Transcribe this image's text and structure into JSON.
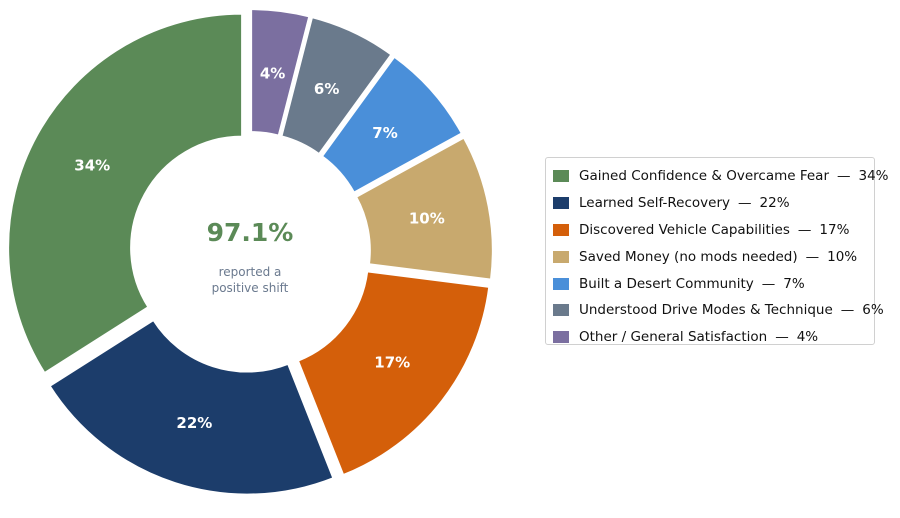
{
  "chart_data": {
    "type": "pie",
    "donut": true,
    "start": "top, clockwise",
    "center": {
      "value": "97.1%",
      "caption_line1": "reported a",
      "caption_line2": "positive shift",
      "value_color": "#5b8a57"
    },
    "slices": [
      {
        "label": "Other / General Satisfaction",
        "value": 4,
        "display": "4%",
        "color": "#7b6fa0"
      },
      {
        "label": "Understood Drive Modes & Technique",
        "value": 6,
        "display": "6%",
        "color": "#6a7a8c"
      },
      {
        "label": "Built a Desert Community",
        "value": 7,
        "display": "7%",
        "color": "#4a8fd9"
      },
      {
        "label": "Saved Money (no mods needed)",
        "value": 10,
        "display": "10%",
        "color": "#c8a96e"
      },
      {
        "label": "Discovered Vehicle Capabilities",
        "value": 17,
        "display": "17%",
        "color": "#d45f0a"
      },
      {
        "label": "Learned Self-Recovery",
        "value": 22,
        "display": "22%",
        "color": "#1c3d6b"
      },
      {
        "label": "Gained Confidence & Overcame Fear",
        "value": 34,
        "display": "34%",
        "color": "#5b8a57"
      }
    ],
    "legend": {
      "placement": "right",
      "separator": "—",
      "items": [
        {
          "label": "Gained Confidence & Overcame Fear",
          "display": "34%",
          "color": "#5b8a57"
        },
        {
          "label": "Learned Self-Recovery",
          "display": "22%",
          "color": "#1c3d6b"
        },
        {
          "label": "Discovered Vehicle Capabilities",
          "display": "17%",
          "color": "#d45f0a"
        },
        {
          "label": "Saved Money (no mods needed)",
          "display": "10%",
          "color": "#c8a96e"
        },
        {
          "label": "Built a Desert Community",
          "display": "7%",
          "color": "#4a8fd9"
        },
        {
          "label": "Understood Drive Modes & Technique",
          "display": "6%",
          "color": "#6a7a8c"
        },
        {
          "label": "Other / General Satisfaction",
          "display": "4%",
          "color": "#7b6fa0"
        }
      ]
    }
  }
}
